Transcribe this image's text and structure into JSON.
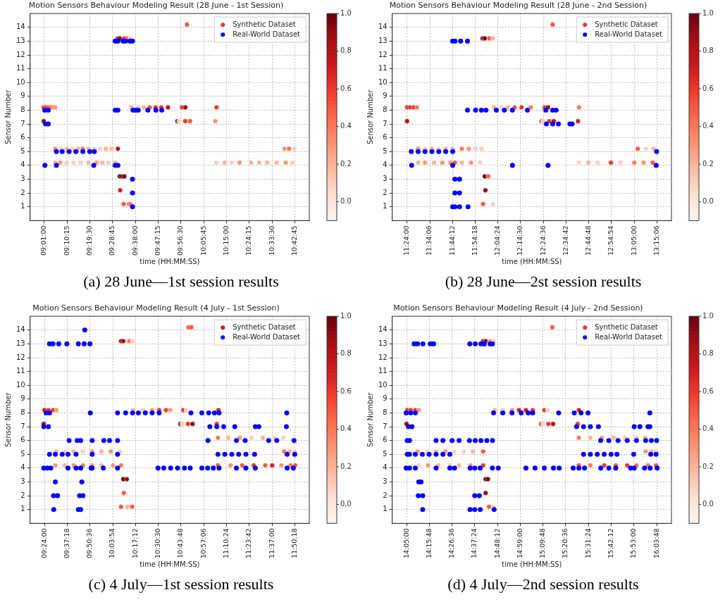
{
  "chart_data": [
    {
      "type": "scatter",
      "title": "Motion Sensors Behaviour Modeling Result (28 June - 1st Session)",
      "xlabel": "time (HH:MM:SS)",
      "ylabel": "Sensor Number",
      "annotations": [
        "(a) 28 June—1st session results"
      ],
      "xlim": [
        8.92,
        10.81
      ],
      "ylim": [
        0,
        15
      ],
      "yticks": [
        1,
        2,
        3,
        4,
        5,
        6,
        7,
        8,
        9,
        10,
        11,
        12,
        13,
        14
      ],
      "xticks": [
        {
          "value": 9.016667,
          "label": "09:01:00"
        },
        {
          "value": 9.170833,
          "label": "09:10:15"
        },
        {
          "value": 9.325,
          "label": "09:19:30"
        },
        {
          "value": 9.479167,
          "label": "09:28:45"
        },
        {
          "value": 9.633333,
          "label": "09:38:00"
        },
        {
          "value": 9.7875,
          "label": "09:47:15"
        },
        {
          "value": 9.941667,
          "label": "09:56:30"
        },
        {
          "value": 10.095833,
          "label": "10:05:45"
        },
        {
          "value": 10.25,
          "label": "10:15:00"
        },
        {
          "value": 10.404167,
          "label": "10:24:15"
        },
        {
          "value": 10.558333,
          "label": "10:33:30"
        },
        {
          "value": 10.7125,
          "label": "10:42:45"
        }
      ],
      "clim": [
        -0.1,
        1.0
      ],
      "cticks": [
        {
          "value": 0,
          "label": "0.0"
        },
        {
          "value": 0.2,
          "label": "0.2"
        },
        {
          "value": 0.4,
          "label": "0.4"
        },
        {
          "value": 0.6,
          "label": "0.6"
        },
        {
          "value": 0.8,
          "label": "0.8"
        },
        {
          "value": 1.0,
          "label": "1.0"
        }
      ],
      "grid": true,
      "legend": "top right",
      "marker": "circle",
      "series": [
        {
          "name": "Synthetic Dataset",
          "x": [
            9.012,
            9.027,
            9.043,
            9.058,
            9.074,
            9.09,
            9.012,
            9.09,
            9.129,
            9.168,
            9.207,
            9.246,
            9.277,
            9.316,
            9.355,
            9.394,
            9.433,
            9.472,
            9.514,
            9.09,
            9.124,
            9.168,
            9.215,
            9.262,
            9.316,
            9.371,
            9.41,
            9.449,
            9.496,
            10.182,
            10.237,
            10.283,
            10.338,
            10.416,
            10.471,
            10.525,
            10.588,
            10.65,
            10.697,
            10.642,
            10.673,
            10.709,
            9.527,
            9.542,
            9.558,
            9.53,
            9.553,
            9.589,
            9.597,
            9.514,
            9.527,
            9.558,
            9.581,
            9.597,
            9.982,
            9.605,
            9.652,
            9.69,
            9.73,
            9.769,
            9.808,
            9.854,
            9.948,
            9.971,
            10.182,
            9.917,
            9.929,
            9.971,
            10.003,
            10.174
          ],
          "values": [
            8.2,
            8.2,
            8.2,
            8.2,
            8.2,
            8.2,
            7.2,
            5.2,
            5.2,
            5.2,
            5.2,
            5.2,
            5.2,
            5.2,
            5.2,
            5.2,
            5.2,
            5.2,
            5.2,
            4.2,
            4.2,
            4.2,
            4.2,
            4.2,
            4.2,
            4.2,
            4.2,
            4.2,
            4.2,
            4.2,
            4.2,
            4.2,
            4.2,
            4.2,
            4.2,
            4.2,
            4.2,
            4.2,
            4.2,
            5.2,
            5.2,
            5.2,
            3.2,
            3.2,
            3.2,
            2.2,
            1.2,
            1.2,
            1.2,
            13.2,
            13.2,
            13.2,
            13.2,
            13.2,
            14.2,
            8.2,
            8.2,
            8.2,
            8.2,
            8.2,
            8.2,
            8.2,
            8.2,
            8.2,
            8.2,
            7.2,
            7.2,
            7.2,
            7.2,
            7.2
          ],
          "colors": [
            "#ec382b",
            "#ec382b",
            "#f24834",
            "#f7593f",
            "#fb7959",
            "#fc9676",
            "#940b13",
            "#fc9676",
            "#fdcfbc",
            "#fcb498",
            "#fdcfbc",
            "#fcb498",
            "#fb7959",
            "#fcb498",
            "#fdcfbc",
            "#fdcfbc",
            "#fcb498",
            "#fcb498",
            "#b61319",
            "#fcb498",
            "#fc9676",
            "#fdcfbc",
            "#fdcfbc",
            "#fdcfbc",
            "#fcb498",
            "#fc9676",
            "#fcb498",
            "#fdcfbc",
            "#fcb498",
            "#fdcfbc",
            "#fcb498",
            "#fdcfbc",
            "#fc9676",
            "#fcb498",
            "#fcb498",
            "#fcb498",
            "#fcb498",
            "#fc9676",
            "#fdcfbc",
            "#fc9676",
            "#fb7959",
            "#fdcfbc",
            "#7e0510",
            "#67000d",
            "#7e0510",
            "#d21e20",
            "#f7593f",
            "#f7593f",
            "#fb7959",
            "#d21e20",
            "#940b13",
            "#ec382b",
            "#f7593f",
            "#fdcfbc",
            "#f7593f",
            "#fcb498",
            "#fdcfbc",
            "#fcb498",
            "#f7593f",
            "#ec382b",
            "#ec382b",
            "#b61319",
            "#ec382b",
            "#940b13",
            "#ec382b",
            "#940b13",
            "#fdcfbc",
            "#ec382b",
            "#f7593f",
            "#fc9676"
          ]
        },
        {
          "name": "Real-World Dataset",
          "color": "#0000ff",
          "x": [
            9.02,
            9.043,
            9.024,
            9.043,
            9.02,
            9.098,
            9.351,
            9.496,
            9.514,
            9.098,
            9.137,
            9.184,
            9.23,
            9.277,
            9.324,
            9.355,
            9.496,
            9.514,
            9.55,
            9.566,
            9.597,
            9.613,
            9.496,
            9.514,
            9.617,
            9.636,
            9.652,
            9.717,
            9.772,
            9.811,
            9.613,
            9.613,
            9.613
          ],
          "values": [
            8,
            8,
            7,
            7,
            4,
            4,
            4,
            4,
            4,
            5,
            5,
            5,
            5,
            5,
            5,
            5,
            13,
            13,
            13,
            13,
            13,
            13,
            8,
            8,
            8,
            8,
            8,
            8,
            8,
            8,
            3,
            2,
            1
          ]
        }
      ]
    },
    {
      "type": "scatter",
      "title": "Motion Sensors Behaviour Modeling Result (28 June - 2nd Session)",
      "xlabel": "time (HH:MM:SS)",
      "ylabel": "Sensor Number",
      "annotations": [
        "(b) 28 June—2st session results"
      ],
      "xlim": [
        11.29,
        13.36
      ],
      "ylim": [
        0,
        15
      ],
      "yticks": [
        1,
        2,
        3,
        4,
        5,
        6,
        7,
        8,
        9,
        10,
        11,
        12,
        13,
        14
      ],
      "xticks": [
        {
          "value": 11.4,
          "label": "11:24:00"
        },
        {
          "value": 11.568333,
          "label": "11:34:06"
        },
        {
          "value": 11.736667,
          "label": "11:44:12"
        },
        {
          "value": 11.905,
          "label": "11:54:18"
        },
        {
          "value": 12.073333,
          "label": "12:04:24"
        },
        {
          "value": 12.241667,
          "label": "12:14:30"
        },
        {
          "value": 12.41,
          "label": "12:24:36"
        },
        {
          "value": 12.578333,
          "label": "12:34:42"
        },
        {
          "value": 12.746667,
          "label": "12:44:48"
        },
        {
          "value": 12.915,
          "label": "12:54:54"
        },
        {
          "value": 13.083333,
          "label": "13:05:00"
        },
        {
          "value": 13.251667,
          "label": "13:15:06"
        }
      ],
      "clim": [
        -0.1,
        1.0
      ],
      "cticks": [
        {
          "value": 0,
          "label": "0.0"
        },
        {
          "value": 0.2,
          "label": "0.2"
        },
        {
          "value": 0.4,
          "label": "0.4"
        },
        {
          "value": 0.6,
          "label": "0.6"
        },
        {
          "value": 0.8,
          "label": "0.8"
        },
        {
          "value": 1.0,
          "label": "1.0"
        }
      ],
      "grid": true,
      "legend": "top right",
      "marker": "circle",
      "series": [
        {
          "name": "Synthetic Dataset",
          "x": [
            11.4,
            11.422,
            11.448,
            11.473,
            11.4,
            11.482,
            11.533,
            11.584,
            11.635,
            11.686,
            11.738,
            11.806,
            11.857,
            11.908,
            11.951,
            11.482,
            11.533,
            11.601,
            11.661,
            11.721,
            11.755,
            11.806,
            11.874,
            11.942,
            11.959,
            11.976,
            12.01,
            12.036,
            11.976,
            12.002,
            11.981,
            11.963,
            12.036,
            12.045,
            12.096,
            12.147,
            12.198,
            12.249,
            12.317,
            12.42,
            12.445,
            12.675,
            12.397,
            12.406,
            12.454,
            12.488,
            12.667,
            12.479,
            12.675,
            12.744,
            12.812,
            12.911,
            12.982,
            13.085,
            13.153,
            13.221,
            13.11,
            13.17,
            13.229
          ],
          "values": [
            8.2,
            8.2,
            8.2,
            8.2,
            7.2,
            5.2,
            5.2,
            5.2,
            5.2,
            5.2,
            5.2,
            5.2,
            5.2,
            5.2,
            5.2,
            4.2,
            4.2,
            4.2,
            4.2,
            4.2,
            4.2,
            4.2,
            4.2,
            4.2,
            13.2,
            13.2,
            13.2,
            13.2,
            3.2,
            3.2,
            2.2,
            1.2,
            1.2,
            8.2,
            8.2,
            8.2,
            8.2,
            8.2,
            8.2,
            8.2,
            8.2,
            8.2,
            7.2,
            7.2,
            7.2,
            7.2,
            7.2,
            14.2,
            4.2,
            4.2,
            4.2,
            4.2,
            4.2,
            4.2,
            4.2,
            4.2,
            5.2,
            5.2,
            5.2
          ],
          "colors": [
            "#ec382b",
            "#ec382b",
            "#ec382b",
            "#fb7959",
            "#b61319",
            "#fc9676",
            "#fdcfbc",
            "#fcb498",
            "#fdcfbc",
            "#fcb498",
            "#fcb498",
            "#fb7959",
            "#fc9676",
            "#fdcfbc",
            "#fdcfbc",
            "#fcb498",
            "#fc9676",
            "#fcb498",
            "#fc9676",
            "#fc9676",
            "#f7593f",
            "#fcb498",
            "#fc9676",
            "#fdcfbc",
            "#b61319",
            "#67000d",
            "#f7593f",
            "#fcb498",
            "#67000d",
            "#f7593f",
            "#940b13",
            "#f7593f",
            "#fdcfbc",
            "#fcb498",
            "#fdcfbc",
            "#fcb498",
            "#f7593f",
            "#ec382b",
            "#fb7959",
            "#ec382b",
            "#940b13",
            "#fb7959",
            "#d21e20",
            "#fdcfbc",
            "#ec382b",
            "#b61319",
            "#d21e20",
            "#f7593f",
            "#fdcfbc",
            "#fcb498",
            "#fdcfbc",
            "#ec382b",
            "#fdcfbc",
            "#fb7959",
            "#fc9676",
            "#f7593f",
            "#f7593f",
            "#fdcfbc",
            "#fcb498"
          ]
        },
        {
          "name": "Real-World Dataset",
          "color": "#0000ff",
          "x": [
            11.431,
            11.482,
            11.533,
            11.584,
            11.635,
            11.686,
            11.738,
            11.434,
            11.738,
            12.181,
            12.445,
            13.247,
            11.738,
            11.755,
            11.797,
            11.848,
            11.755,
            11.789,
            11.755,
            11.789,
            11.738,
            11.755,
            11.789,
            11.852,
            11.848,
            11.908,
            11.951,
            11.985,
            12.062,
            12.121,
            12.181,
            12.292,
            12.428,
            12.479,
            12.505,
            12.433,
            12.479,
            12.522,
            12.607,
            12.624,
            13.25
          ],
          "values": [
            5,
            5,
            5,
            5,
            5,
            5,
            5,
            4,
            4,
            4,
            4,
            4,
            13,
            13,
            13,
            13,
            3,
            3,
            2,
            2,
            1,
            1,
            1,
            1,
            8,
            8,
            8,
            8,
            8,
            8,
            8,
            8,
            8,
            8,
            8,
            7,
            7,
            7,
            7,
            7,
            5
          ]
        }
      ]
    },
    {
      "type": "scatter",
      "title": "Motion Sensors Behaviour Modeling Result (4 July - 1st Session)",
      "xlabel": "time (HH:MM:SS)",
      "ylabel": "Sensor Number",
      "annotations": [
        "(c) 4 July—1st session results"
      ],
      "xlim": [
        9.26,
        11.98
      ],
      "ylim": [
        0,
        15
      ],
      "yticks": [
        1,
        2,
        3,
        4,
        5,
        6,
        7,
        8,
        9,
        10,
        11,
        12,
        13,
        14
      ],
      "xticks": [
        {
          "value": 9.4,
          "label": "09:24:00"
        },
        {
          "value": 9.621667,
          "label": "09:37:18"
        },
        {
          "value": 9.843333,
          "label": "09:50:36"
        },
        {
          "value": 10.065,
          "label": "10:03:54"
        },
        {
          "value": 10.286667,
          "label": "10:17:12"
        },
        {
          "value": 10.508333,
          "label": "10:30:30"
        },
        {
          "value": 10.73,
          "label": "10:43:48"
        },
        {
          "value": 10.951667,
          "label": "10:57:06"
        },
        {
          "value": 11.173333,
          "label": "11:10:24"
        },
        {
          "value": 11.395,
          "label": "11:23:42"
        },
        {
          "value": 11.616667,
          "label": "11:37:00"
        },
        {
          "value": 11.838333,
          "label": "11:50:18"
        }
      ],
      "clim": [
        -0.1,
        1.0
      ],
      "cticks": [
        {
          "value": 0,
          "label": "0.0"
        },
        {
          "value": 0.2,
          "label": "0.2"
        },
        {
          "value": 0.4,
          "label": "0.4"
        },
        {
          "value": 0.6,
          "label": "0.6"
        },
        {
          "value": 0.8,
          "label": "0.8"
        },
        {
          "value": 1.0,
          "label": "1.0"
        }
      ],
      "grid": true,
      "legend": "top right",
      "marker": "circle",
      "series": [
        {
          "name": "Synthetic Dataset",
          "x": [
            9.4,
            9.438,
            9.483,
            9.517,
            9.393,
            9.517,
            9.596,
            9.685,
            9.775,
            9.865,
            9.955,
            10.045,
            10.135,
            9.506,
            9.596,
            9.685,
            9.775,
            9.865,
            9.955,
            10.067,
            10.146,
            10.146,
            10.168,
            10.225,
            10.258,
            10.168,
            10.202,
            10.173,
            10.146,
            10.209,
            10.254,
            10.265,
            10.36,
            10.449,
            10.517,
            10.584,
            10.625,
            10.753,
            10.782,
            11.094,
            10.724,
            10.742,
            10.798,
            10.843,
            11.079,
            10.804,
            10.831,
            11.09,
            11.191,
            11.303,
            11.416,
            11.528,
            11.64,
            11.726,
            11.09,
            11.213,
            11.326,
            11.438,
            11.551,
            11.618,
            11.708,
            11.798,
            11.843,
            11.735,
            11.787,
            11.838
          ],
          "values": [
            8.2,
            8.2,
            8.2,
            8.2,
            7.2,
            5.2,
            5.2,
            5.2,
            5.2,
            5.2,
            5.2,
            5.2,
            5.2,
            4.2,
            4.2,
            4.2,
            4.2,
            4.2,
            4.2,
            4.2,
            4.2,
            13.2,
            13.2,
            13.2,
            13.2,
            3.2,
            3.2,
            2.2,
            1.2,
            1.2,
            1.2,
            8.2,
            8.2,
            8.2,
            8.2,
            8.2,
            8.2,
            8.2,
            8.2,
            8.2,
            7.2,
            7.2,
            7.2,
            7.2,
            7.2,
            14.2,
            14.2,
            6.2,
            6.2,
            6.2,
            6.2,
            6.2,
            6.2,
            6.2,
            4.2,
            4.2,
            4.2,
            4.2,
            4.2,
            4.2,
            4.2,
            4.2,
            4.2,
            5.2,
            5.2,
            5.2
          ],
          "colors": [
            "#d21e20",
            "#ec382b",
            "#ec382b",
            "#fc9676",
            "#940b13",
            "#fcb498",
            "#fdcfbc",
            "#fcb498",
            "#fdcfbc",
            "#fc9676",
            "#fcb498",
            "#fc9676",
            "#fdcfbc",
            "#fc9676",
            "#fcb498",
            "#fc9676",
            "#fb7959",
            "#fc9676",
            "#fcb498",
            "#fc9676",
            "#fb7959",
            "#b61319",
            "#940b13",
            "#fb7959",
            "#fdcfbc",
            "#67000d",
            "#940b13",
            "#f7593f",
            "#f7593f",
            "#fcb498",
            "#f7593f",
            "#fcb498",
            "#fdcfbc",
            "#fc9676",
            "#ec382b",
            "#ec382b",
            "#fc9676",
            "#ec382b",
            "#fdcfbc",
            "#d21e20",
            "#940b13",
            "#fdcfbc",
            "#ec382b",
            "#940b13",
            "#ec382b",
            "#f7593f",
            "#f7593f",
            "#fb7959",
            "#fcb498",
            "#fc9676",
            "#fdcfbc",
            "#fcb498",
            "#fdcfbc",
            "#fdcfbc",
            "#f7593f",
            "#fc9676",
            "#f7593f",
            "#ec382b",
            "#f7593f",
            "#d21e20",
            "#fc9676",
            "#fb7959",
            "#f7593f",
            "#fb7959",
            "#fcb498",
            "#fdcfbc"
          ]
        },
        {
          "name": "Real-World Dataset",
          "color": "#0000ff",
          "x": [
            9.393,
            9.438,
            9.416,
            9.449,
            9.393,
            9.427,
            9.461,
            9.629,
            9.708,
            9.753,
            9.854,
            9.865,
            9.973,
            10.112,
            10.506,
            10.562,
            10.629,
            10.697,
            10.764,
            10.82,
            10.933,
            10.989,
            11.045,
            11.101,
            11.27,
            11.362,
            11.454,
            11.764,
            11.825,
            9.449,
            9.506,
            9.573,
            9.629,
            9.708,
            9.865,
            10.112,
            11.09,
            11.157,
            11.225,
            11.292,
            11.362,
            11.447,
            11.764,
            11.838,
            9.64,
            9.719,
            9.753,
            9.865,
            9.978,
            10.034,
            10.112,
            10.993,
            11.27,
            11.355,
            11.584,
            11.663,
            11.831,
            9.506,
            9.764,
            9.488,
            9.528,
            9.742,
            9.775,
            9.49,
            9.73,
            9.753,
            9.449,
            9.483,
            9.539,
            9.618,
            9.73,
            9.787,
            9.843,
            9.793,
            9.847,
            10.112,
            10.191,
            10.258,
            10.315,
            10.382,
            10.449,
            10.517,
            10.827,
            10.933,
            11.0,
            11.056,
            11.101,
            11.76,
            11.011,
            11.079,
            11.146,
            11.254,
            11.454,
            11.488,
            11.757
          ],
          "values": [
            7,
            7,
            8,
            8,
            4,
            4,
            4,
            4,
            4,
            4,
            4,
            4,
            4,
            4,
            4,
            4,
            4,
            4,
            4,
            4,
            4,
            4,
            4,
            4,
            4,
            4,
            4,
            4,
            4,
            5,
            5,
            5,
            5,
            5,
            5,
            5,
            5,
            5,
            5,
            5,
            5,
            5,
            5,
            5,
            6,
            6,
            6,
            6,
            6,
            6,
            6,
            6,
            6,
            6,
            6,
            6,
            6,
            3,
            3,
            2,
            2,
            2,
            2,
            1,
            1,
            1,
            13,
            13,
            13,
            13,
            13,
            13,
            13,
            14,
            8,
            8,
            8,
            8,
            8,
            8,
            8,
            8,
            8,
            8,
            8,
            8,
            8,
            8,
            7,
            7,
            7,
            7,
            7,
            7,
            7
          ]
        }
      ]
    },
    {
      "type": "scatter",
      "title": "Motion Sensors Behaviour Modeling Result (4 July - 2nd Session)",
      "xlabel": "time (HH:MM:SS)",
      "ylabel": "Sensor Number",
      "annotations": [
        "(d) 4 July—2nd session results"
      ],
      "xlim": [
        13.97,
        16.18
      ],
      "ylim": [
        0,
        15
      ],
      "yticks": [
        1,
        2,
        3,
        4,
        5,
        6,
        7,
        8,
        9,
        10,
        11,
        12,
        13,
        14
      ],
      "xticks": [
        {
          "value": 14.083333,
          "label": "14:05:00"
        },
        {
          "value": 14.263333,
          "label": "14:15:48"
        },
        {
          "value": 14.443333,
          "label": "14:26:36"
        },
        {
          "value": 14.623333,
          "label": "14:37:24"
        },
        {
          "value": 14.803333,
          "label": "14:48:12"
        },
        {
          "value": 14.983333,
          "label": "14:59:00"
        },
        {
          "value": 15.163333,
          "label": "15:09:48"
        },
        {
          "value": 15.343333,
          "label": "15:20:36"
        },
        {
          "value": 15.523333,
          "label": "15:31:24"
        },
        {
          "value": 15.703333,
          "label": "15:42:12"
        },
        {
          "value": 15.883333,
          "label": "15:53:00"
        },
        {
          "value": 16.063333,
          "label": "16:03:48"
        }
      ],
      "clim": [
        -0.1,
        1.0
      ],
      "cticks": [
        {
          "value": 0,
          "label": "0.0"
        },
        {
          "value": 0.2,
          "label": "0.2"
        },
        {
          "value": 0.4,
          "label": "0.4"
        },
        {
          "value": 0.6,
          "label": "0.6"
        },
        {
          "value": 0.8,
          "label": "0.8"
        },
        {
          "value": 1.0,
          "label": "1.0"
        }
      ],
      "grid": true,
      "legend": "top right",
      "marker": "circle",
      "series": [
        {
          "name": "Synthetic Dataset",
          "x": [
            14.089,
            14.116,
            14.153,
            14.18,
            14.083,
            14.171,
            14.244,
            14.317,
            14.39,
            14.463,
            14.536,
            14.608,
            14.69,
            14.18,
            14.253,
            14.335,
            14.426,
            14.499,
            14.59,
            14.69,
            14.69,
            14.709,
            14.745,
            14.772,
            14.709,
            14.727,
            14.709,
            14.736,
            14.772,
            14.782,
            14.845,
            14.918,
            14.973,
            15.028,
            15.082,
            15.174,
            15.201,
            15.447,
            15.15,
            15.161,
            15.206,
            15.243,
            15.438,
            15.237,
            15.447,
            15.538,
            15.629,
            15.72,
            15.812,
            15.903,
            15.972,
            15.447,
            15.538,
            15.648,
            15.739,
            15.83,
            15.903,
            15.994,
            16.058,
            15.976,
            16.021,
            16.058
          ],
          "values": [
            8.2,
            8.2,
            8.2,
            8.2,
            7.2,
            5.2,
            5.2,
            5.2,
            5.2,
            5.2,
            5.2,
            5.2,
            5.2,
            4.2,
            4.2,
            4.2,
            4.2,
            4.2,
            4.2,
            4.2,
            13.2,
            13.2,
            13.2,
            13.2,
            3.2,
            3.2,
            2.2,
            1.2,
            1.2,
            8.2,
            8.2,
            8.2,
            8.2,
            8.2,
            8.2,
            8.2,
            8.2,
            8.2,
            7.2,
            7.2,
            7.2,
            7.2,
            7.2,
            14.2,
            6.2,
            6.2,
            6.2,
            6.2,
            6.2,
            6.2,
            6.2,
            4.2,
            4.2,
            4.2,
            4.2,
            4.2,
            4.2,
            4.2,
            4.2,
            5.2,
            5.2,
            5.2
          ],
          "colors": [
            "#ec382b",
            "#ec382b",
            "#ec382b",
            "#fc9676",
            "#940b13",
            "#fc9676",
            "#fdcfbc",
            "#fcb498",
            "#fc9676",
            "#fdcfbc",
            "#fdcfbc",
            "#fcb498",
            "#f7593f",
            "#fdcfbc",
            "#fc9676",
            "#fcb498",
            "#fdcfbc",
            "#fcb498",
            "#fc9676",
            "#ec382b",
            "#d21e20",
            "#940b13",
            "#fc9676",
            "#fdcfbc",
            "#940b13",
            "#67000d",
            "#940b13",
            "#f7593f",
            "#fdcfbc",
            "#fcb498",
            "#fdcfbc",
            "#fc9676",
            "#d21e20",
            "#d21e20",
            "#ec382b",
            "#ec382b",
            "#fdcfbc",
            "#d21e20",
            "#b61319",
            "#fdcfbc",
            "#ec382b",
            "#b61319",
            "#ec382b",
            "#f7593f",
            "#fb7959",
            "#fcb498",
            "#fc9676",
            "#fcb498",
            "#fdcfbc",
            "#fdcfbc",
            "#fcb498",
            "#f7593f",
            "#fb7959",
            "#ec382b",
            "#f7593f",
            "#ec382b",
            "#fb7959",
            "#fb7959",
            "#f7593f",
            "#fc9676",
            "#fcb498",
            "#fdcfbc"
          ]
        },
        {
          "name": "Real-World Dataset",
          "color": "#0000ff",
          "x": [
            14.08,
            14.116,
            14.153,
            14.772,
            14.845,
            14.918,
            14.991,
            15.046,
            15.082,
            15.287,
            15.411,
            15.465,
            15.52,
            16.009,
            14.098,
            14.126,
            15.429,
            15.484,
            15.538,
            15.602,
            15.885,
            15.93,
            15.994,
            16.009,
            14.089,
            14.107,
            14.317,
            14.371,
            14.444,
            14.499,
            14.581,
            14.627,
            14.672,
            14.718,
            14.763,
            15.62,
            15.684,
            15.757,
            15.83,
            15.903,
            15.976,
            16.021,
            16.063,
            14.089,
            14.107,
            14.153,
            14.208,
            14.262,
            14.317,
            14.371,
            14.426,
            15.484,
            15.538,
            15.593,
            15.648,
            15.702,
            15.748,
            15.881,
            16.016,
            16.058,
            14.08,
            14.107,
            14.153,
            14.317,
            14.426,
            14.463,
            14.586,
            14.623,
            14.666,
            14.763,
            14.809,
            15.028,
            15.1,
            15.174,
            15.246,
            15.292,
            15.402,
            15.447,
            15.492,
            15.62,
            15.684,
            15.739,
            15.857,
            15.885,
            15.967,
            16.012,
            16.067,
            14.18,
            14.198,
            14.176,
            14.211,
            14.623,
            14.659,
            14.211,
            14.586,
            14.623,
            14.666,
            14.776,
            14.143,
            14.171,
            14.213,
            14.271,
            14.298,
            14.584,
            14.627,
            14.672,
            14.699,
            14.745,
            14.763
          ],
          "values": [
            8,
            8,
            8,
            8,
            8,
            8,
            8,
            8,
            8,
            8,
            8,
            8,
            8,
            8,
            7,
            7,
            7,
            7,
            7,
            7,
            7,
            7,
            7,
            7,
            6,
            6,
            6,
            6,
            6,
            6,
            6,
            6,
            6,
            6,
            6,
            6,
            6,
            6,
            6,
            6,
            6,
            6,
            6,
            5,
            5,
            5,
            5,
            5,
            5,
            5,
            5,
            5,
            5,
            5,
            5,
            5,
            5,
            5,
            5,
            5,
            4,
            4,
            4,
            4,
            4,
            4,
            4,
            4,
            4,
            4,
            4,
            4,
            4,
            4,
            4,
            4,
            4,
            4,
            4,
            4,
            4,
            4,
            4,
            4,
            4,
            4,
            4,
            3,
            3,
            2,
            2,
            2,
            2,
            1,
            1,
            1,
            1,
            1,
            13,
            13,
            13,
            13,
            13,
            13,
            13,
            13,
            13,
            13,
            13
          ]
        }
      ]
    }
  ]
}
